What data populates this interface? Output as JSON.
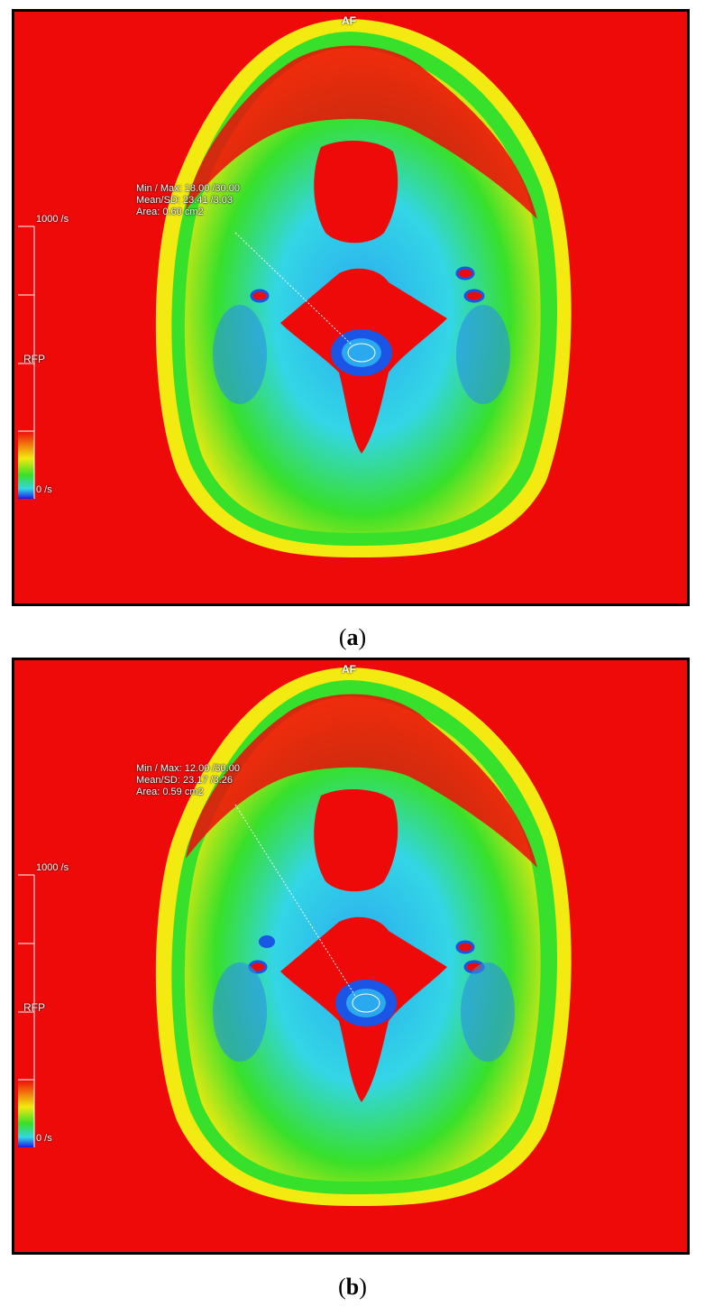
{
  "panels": [
    {
      "id": "a",
      "caption_letter": "a",
      "orientation_top": "AF",
      "orientation_left": "RFP",
      "scale_max": "1000 /s",
      "scale_min": "0 /s",
      "roi": {
        "line1": "Min / Max: 18.00 /30.00",
        "line2": "Mean/SD: 23.41 /3.03",
        "line3": "Area: 0.60 cm2"
      }
    },
    {
      "id": "b",
      "caption_letter": "b",
      "orientation_top": "AF",
      "orientation_left": "RFP",
      "scale_max": "1000 /s",
      "scale_min": "0 /s",
      "roi": {
        "line1": "Min / Max: 12.00 /30.00",
        "line2": "Mean/SD: 23.17 /3.26",
        "line3": "Area: 0.59 cm2"
      }
    }
  ],
  "colors": {
    "background_red": "#ef0a0a",
    "tissue_cyan": "#33d6e6",
    "tissue_green": "#37e02a",
    "tissue_yellow": "#f2ea10",
    "tissue_blue": "#1a55e6",
    "border": "#000000"
  }
}
